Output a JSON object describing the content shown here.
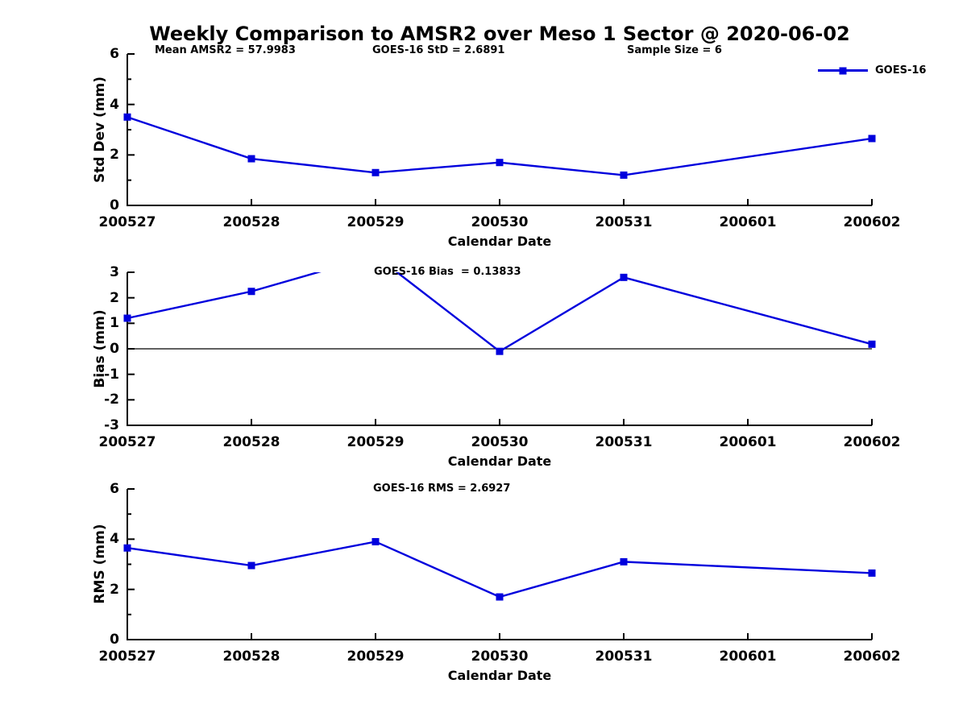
{
  "title": "Weekly Comparison to AMSR2 over Meso 1 Sector @ 2020-06-02",
  "legend": {
    "label": "GOES-16"
  },
  "colors": {
    "series": "#0000dd",
    "axis": "#000000",
    "text": "#000000",
    "background": "#ffffff"
  },
  "chart_data": [
    {
      "type": "line",
      "id": "std-dev",
      "ylabel": "Std Dev (mm)",
      "xlabel": "Calendar Date",
      "annotations": [
        "Mean AMSR2 = 57.9983",
        "GOES-16 StD = 2.6891",
        "Sample Size = 6"
      ],
      "categories": [
        "200527",
        "200528",
        "200529",
        "200530",
        "200531",
        "200601",
        "200602"
      ],
      "ylim": [
        0,
        6
      ],
      "yticks": [
        0,
        2,
        4,
        6
      ],
      "yticks_minor": [
        1,
        3,
        5
      ],
      "grid": false,
      "legend_position": "top-right",
      "series": [
        {
          "name": "GOES-16",
          "marker": "square",
          "x": [
            "200527",
            "200528",
            "200529",
            "200530",
            "200531",
            "200602"
          ],
          "values": [
            3.5,
            1.85,
            1.3,
            1.7,
            1.2,
            2.65
          ]
        }
      ]
    },
    {
      "type": "line",
      "id": "bias",
      "ylabel": "Bias (mm)",
      "xlabel": "Calendar Date",
      "annotations": [
        "GOES-16 Bias  = 0.13833"
      ],
      "categories": [
        "200527",
        "200528",
        "200529",
        "200530",
        "200531",
        "200601",
        "200602"
      ],
      "ylim": [
        -3,
        3
      ],
      "yticks": [
        -3,
        -2,
        -1,
        0,
        1,
        2,
        3
      ],
      "yticks_minor": [],
      "grid": false,
      "zero_line": true,
      "series": [
        {
          "name": "GOES-16",
          "marker": "square",
          "x": [
            "200527",
            "200528",
            "200529",
            "200530",
            "200531",
            "200602"
          ],
          "values": [
            1.2,
            2.25,
            3.65,
            -0.1,
            2.8,
            0.18
          ]
        }
      ]
    },
    {
      "type": "line",
      "id": "rms",
      "ylabel": "RMS (mm)",
      "xlabel": "Calendar Date",
      "annotations": [
        "GOES-16 RMS = 2.6927"
      ],
      "categories": [
        "200527",
        "200528",
        "200529",
        "200530",
        "200531",
        "200601",
        "200602"
      ],
      "ylim": [
        0,
        6
      ],
      "yticks": [
        0,
        2,
        4,
        6
      ],
      "yticks_minor": [
        1,
        3,
        5
      ],
      "grid": false,
      "series": [
        {
          "name": "GOES-16",
          "marker": "square",
          "x": [
            "200527",
            "200528",
            "200529",
            "200530",
            "200531",
            "200602"
          ],
          "values": [
            3.65,
            2.95,
            3.9,
            1.7,
            3.1,
            2.65
          ]
        }
      ]
    }
  ]
}
